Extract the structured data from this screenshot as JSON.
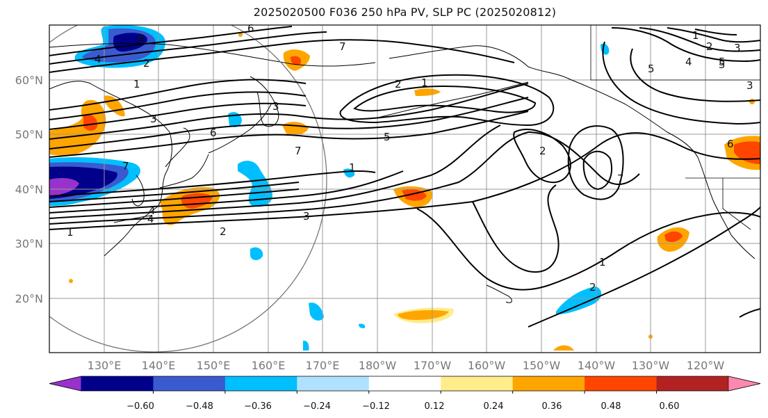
{
  "title": "2025020500 F036 250 hPa PV, SLP PC (2025020812)",
  "latitude_labels": [
    "60°N",
    "50°N",
    "40°N",
    "30°N",
    "20°N"
  ],
  "longitude_labels": [
    "130°E",
    "140°E",
    "150°E",
    "160°E",
    "170°E",
    "180°W",
    "170°W",
    "160°W",
    "150°W",
    "140°W",
    "130°W",
    "120°W"
  ],
  "colorbar": {
    "colors": [
      "#9932cc",
      "#00008b",
      "#3a5bd0",
      "#00bfff",
      "#b0e2ff",
      "#ffffff",
      "#ffec8b",
      "#ffa500",
      "#ff4500",
      "#b22222",
      "#ff88b0"
    ],
    "tick_labels": [
      "−0.60",
      "−0.48",
      "−0.36",
      "−0.24",
      "−0.12",
      "0.12",
      "0.24",
      "0.36",
      "0.48",
      "0.60"
    ]
  },
  "contour_labels": [
    "1",
    "2",
    "3",
    "4",
    "5",
    "6",
    "7",
    "1",
    "2",
    "3",
    "4",
    "5",
    "6",
    "7",
    "1",
    "2",
    "3",
    "4",
    "5",
    "6",
    "7",
    "1",
    "2",
    "3",
    "4",
    "5",
    "6",
    "7",
    "1",
    "2",
    "3",
    "1",
    "2"
  ],
  "colors": {
    "grid": "#999999",
    "contour": "#000000",
    "coast": "#000000",
    "circle": "#777777"
  }
}
